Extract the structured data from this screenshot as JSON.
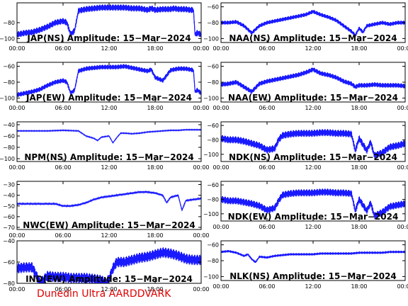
{
  "footer": "Dunedin Ultra AARDDVARK",
  "colors": {
    "trace": "#1a1aff",
    "axes": "#000000",
    "footer": "#e00000",
    "background": "#ffffff"
  },
  "chart_data": [
    {
      "type": "line",
      "title": "JAP(NS) Amplitude: 15−Mar−2024",
      "x_ticks": [
        "00:00",
        "06:00",
        "12:00",
        "18:00",
        "00:00"
      ],
      "x_range_hours": [
        0,
        24
      ],
      "ylim": [
        -105,
        -55
      ],
      "y_ticks": [
        -80,
        -100
      ],
      "band": 4,
      "series": [
        {
          "x": [
            0,
            1,
            2,
            3,
            4,
            5,
            6,
            6.5,
            7,
            7.5,
            8,
            9,
            10,
            11,
            12,
            13,
            14,
            15,
            16,
            17,
            17.5,
            18,
            19,
            20,
            20.5,
            21,
            22,
            22.5,
            23,
            23.2,
            23.5,
            24
          ],
          "y": [
            -95,
            -93,
            -92,
            -89,
            -85,
            -80,
            -78,
            -80,
            -95,
            -90,
            -65,
            -63,
            -62,
            -61,
            -61,
            -61,
            -61,
            -62,
            -62,
            -64,
            -62,
            -64,
            -63,
            -63,
            -62,
            -63,
            -63,
            -64,
            -64,
            -95,
            -93,
            -95
          ]
        }
      ]
    },
    {
      "type": "line",
      "title": "NAA(NS) Amplitude: 15−Mar−2024",
      "x_ticks": [
        "00:00",
        "06:00",
        "12:00",
        "18:00",
        "00:00"
      ],
      "x_range_hours": [
        0,
        24
      ],
      "ylim": [
        -105,
        -55
      ],
      "y_ticks": [
        -60,
        -80,
        -100
      ],
      "band": 2.5,
      "series": [
        {
          "x": [
            0,
            1,
            2,
            3,
            4,
            5,
            6,
            7,
            8,
            9,
            10,
            11,
            12,
            13,
            14,
            15,
            16,
            17,
            17.5,
            18,
            18.5,
            19,
            20,
            21,
            22,
            23,
            24
          ],
          "y": [
            -80,
            -80,
            -79,
            -84,
            -93,
            -84,
            -80,
            -78,
            -76,
            -74,
            -72,
            -70,
            -66,
            -70,
            -73,
            -77,
            -84,
            -91,
            -96,
            -87,
            -92,
            -84,
            -82,
            -80,
            -82,
            -80,
            -80
          ]
        }
      ]
    },
    {
      "type": "line",
      "title": "JAP(EW) Amplitude: 15−Mar−2024",
      "x_ticks": [
        "00:00",
        "06:00",
        "12:00",
        "18:00",
        "00:00"
      ],
      "x_range_hours": [
        0,
        24
      ],
      "ylim": [
        -105,
        -55
      ],
      "y_ticks": [
        -60,
        -80,
        -100
      ],
      "band": 3,
      "series": [
        {
          "x": [
            0,
            1,
            2,
            3,
            4,
            5,
            6,
            6.5,
            7,
            7.5,
            8,
            9,
            10,
            11,
            12,
            13,
            14,
            15,
            16,
            17,
            17.5,
            18,
            19,
            20,
            21,
            22,
            22.5,
            23,
            23.2,
            23.5,
            24
          ],
          "y": [
            -96,
            -94,
            -92,
            -89,
            -84,
            -80,
            -78,
            -80,
            -94,
            -90,
            -66,
            -63,
            -62,
            -61,
            -61,
            -61,
            -60,
            -62,
            -64,
            -66,
            -64,
            -74,
            -78,
            -65,
            -63,
            -63,
            -64,
            -65,
            -92,
            -90,
            -94
          ]
        }
      ]
    },
    {
      "type": "line",
      "title": "NAA(EW) Amplitude: 15−Mar−2024",
      "x_ticks": [
        "00:00",
        "06:00",
        "12:00",
        "18:00",
        "00:00"
      ],
      "x_range_hours": [
        0,
        24
      ],
      "ylim": [
        -105,
        -55
      ],
      "y_ticks": [
        -60,
        -80,
        -100
      ],
      "band": 3,
      "series": [
        {
          "x": [
            0,
            1,
            2,
            3,
            4,
            5,
            6,
            7,
            8,
            9,
            10,
            11,
            12,
            13,
            14,
            15,
            16,
            17,
            17.5,
            18,
            19,
            20,
            21,
            22,
            23,
            24
          ],
          "y": [
            -83,
            -82,
            -80,
            -86,
            -92,
            -82,
            -79,
            -77,
            -75,
            -73,
            -71,
            -68,
            -64,
            -69,
            -71,
            -74,
            -79,
            -82,
            -86,
            -84,
            -84,
            -83,
            -84,
            -84,
            -84,
            -85
          ]
        }
      ]
    },
    {
      "type": "line",
      "title": "NPM(NS) Amplitude: 15−Mar−2024",
      "x_ticks": [
        "00:00",
        "06:00",
        "12:00",
        "18:00",
        "00:00"
      ],
      "x_range_hours": [
        0,
        24
      ],
      "ylim": [
        -105,
        -35
      ],
      "y_ticks": [
        -40,
        -60,
        -80,
        -100
      ],
      "band": 0.8,
      "series": [
        {
          "x": [
            0,
            2,
            4,
            6,
            8,
            9,
            10,
            10.5,
            11,
            12,
            12.5,
            13,
            13.5,
            14,
            15,
            16,
            17,
            18,
            19,
            20,
            21,
            22,
            23,
            24
          ],
          "y": [
            -51,
            -51,
            -51,
            -50,
            -51,
            -60,
            -64,
            -68,
            -62,
            -60,
            -72,
            -63,
            -55,
            -55,
            -56,
            -55,
            -53,
            -52,
            -51,
            -50,
            -50,
            -49,
            -49,
            -49
          ]
        }
      ]
    },
    {
      "type": "line",
      "title": "NDK(NS) Amplitude: 15−Mar−2024",
      "x_ticks": [
        "00:00",
        "06:00",
        "12:00",
        "18:00",
        "00:00"
      ],
      "x_range_hours": [
        0,
        24
      ],
      "ylim": [
        -110,
        -55
      ],
      "y_ticks": [
        -60,
        -80,
        -100
      ],
      "band": 5,
      "series": [
        {
          "x": [
            0,
            1,
            2,
            3,
            4,
            5,
            6,
            7,
            7.5,
            8,
            9,
            10,
            11,
            12,
            13,
            14,
            15,
            16,
            17,
            17.5,
            18,
            19,
            19.5,
            20,
            21,
            22,
            23,
            24
          ],
          "y": [
            -78,
            -80,
            -80,
            -82,
            -85,
            -88,
            -94,
            -92,
            -80,
            -74,
            -72,
            -71,
            -71,
            -71,
            -70,
            -70,
            -71,
            -71,
            -72,
            -95,
            -78,
            -95,
            -83,
            -102,
            -98,
            -90,
            -88,
            -85
          ]
        }
      ]
    },
    {
      "type": "line",
      "title": "NWC(EW) Amplitude: 15−Mar−2024",
      "x_ticks": [
        "00:00",
        "06:00",
        "12:00",
        "18:00",
        "00:00"
      ],
      "x_range_hours": [
        0,
        24
      ],
      "ylim": [
        -72,
        -27
      ],
      "y_ticks": [
        -30,
        -40,
        -50,
        -60,
        -70
      ],
      "band": 0.8,
      "series": [
        {
          "x": [
            0,
            1,
            2,
            3,
            4,
            5,
            6,
            7,
            8,
            9,
            10,
            11,
            12,
            13,
            14,
            15,
            16,
            17,
            18,
            19,
            19.5,
            20,
            21,
            21.5,
            22,
            23,
            24
          ],
          "y": [
            -48,
            -48,
            -48,
            -48,
            -48,
            -48,
            -50,
            -50,
            -49,
            -47,
            -44,
            -42,
            -41,
            -40,
            -39,
            -38,
            -37,
            -37,
            -38,
            -40,
            -47,
            -42,
            -40,
            -54,
            -45,
            -44,
            -43
          ]
        }
      ]
    },
    {
      "type": "line",
      "title": "NDK(EW) Amplitude: 15−Mar−2024",
      "x_ticks": [
        "00:00",
        "06:00",
        "12:00",
        "18:00",
        "00:00"
      ],
      "x_range_hours": [
        0,
        24
      ],
      "ylim": [
        -110,
        -55
      ],
      "y_ticks": [
        -60,
        -80,
        -100
      ],
      "band": 5,
      "series": [
        {
          "x": [
            0,
            1,
            2,
            3,
            4,
            5,
            6,
            7,
            7.5,
            8,
            9,
            10,
            11,
            12,
            13,
            14,
            15,
            16,
            17,
            17.5,
            18,
            19,
            19.5,
            20,
            21,
            22,
            23,
            24
          ],
          "y": [
            -80,
            -82,
            -82,
            -84,
            -86,
            -89,
            -95,
            -92,
            -82,
            -74,
            -72,
            -71,
            -71,
            -71,
            -70,
            -70,
            -71,
            -71,
            -72,
            -96,
            -80,
            -96,
            -85,
            -103,
            -98,
            -90,
            -88,
            -86
          ]
        }
      ]
    },
    {
      "type": "line",
      "title": "IND(EW) Amplitude: 15−Mar−2024",
      "x_ticks": [
        "00:00",
        "06:00",
        "12:00",
        "18:00",
        "00:00"
      ],
      "x_range_hours": [
        0,
        24
      ],
      "ylim": [
        -80,
        -40
      ],
      "y_ticks": [
        -40,
        -60,
        -80
      ],
      "band": 5,
      "series": [
        {
          "x": [
            0,
            1,
            2,
            3,
            4,
            5,
            6,
            7,
            8,
            9,
            10,
            11,
            11.5,
            12,
            12.5,
            13,
            14,
            15,
            16,
            17,
            18,
            19,
            20,
            21,
            22,
            23,
            24
          ],
          "y": [
            -66,
            -65,
            -65,
            -80,
            -73,
            -74,
            -74,
            -75,
            -75,
            -75,
            -76,
            -77,
            -80,
            -76,
            -66,
            -60,
            -60,
            -58,
            -56,
            -55,
            -53,
            -51,
            -52,
            -54,
            -57,
            -58,
            -58
          ]
        }
      ]
    },
    {
      "type": "line",
      "title": "NLK(NS) Amplitude: 15−Mar−2024",
      "x_ticks": [
        "00:00",
        "06:00",
        "12:00",
        "18:00",
        "00:00"
      ],
      "x_range_hours": [
        0,
        24
      ],
      "ylim": [
        -105,
        -55
      ],
      "y_ticks": [
        -60,
        -80,
        -100
      ],
      "band": 1.5,
      "series": [
        {
          "x": [
            0,
            1,
            2,
            3,
            3.5,
            4,
            4.5,
            5,
            6,
            7,
            8,
            9,
            10,
            11,
            12,
            13,
            14,
            15,
            16,
            17,
            18,
            19,
            20,
            21,
            22,
            23,
            24
          ],
          "y": [
            -69,
            -68,
            -70,
            -74,
            -72,
            -78,
            -82,
            -75,
            -76,
            -74,
            -73,
            -72,
            -72,
            -72,
            -72,
            -71,
            -71,
            -71,
            -71,
            -71,
            -70,
            -70,
            -70,
            -70,
            -69,
            -69,
            -69
          ]
        }
      ]
    }
  ]
}
